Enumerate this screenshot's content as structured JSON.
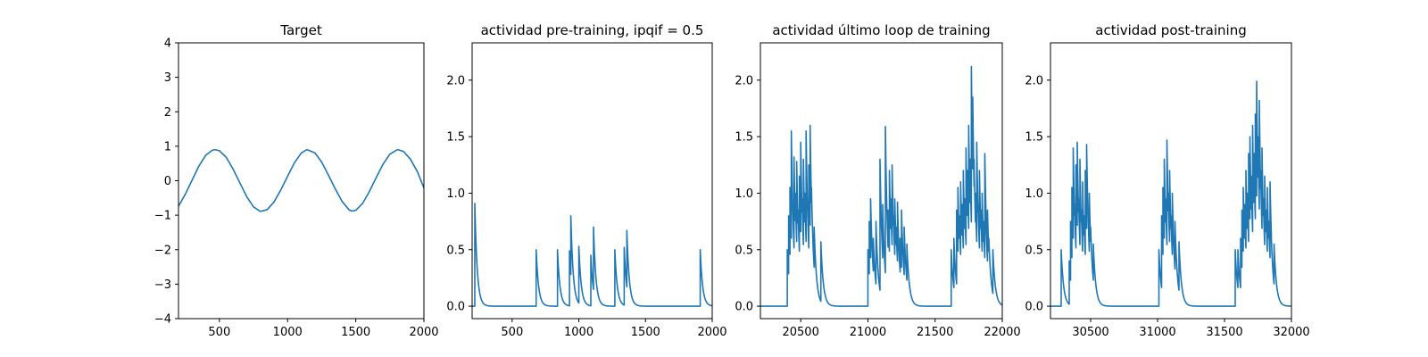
{
  "chart_data": [
    {
      "type": "line",
      "title": "Target",
      "xlabel": "",
      "ylabel": "",
      "xlim": [
        200,
        2000
      ],
      "ylim": [
        -4,
        4
      ],
      "xticks": [
        500,
        1000,
        1500,
        2000
      ],
      "yticks": [
        -4,
        -3,
        -2,
        -1,
        0,
        1,
        2,
        3,
        4
      ],
      "series": [
        {
          "color": "#1f77b4",
          "x": [
            200,
            250,
            300,
            350,
            400,
            450,
            470,
            500,
            550,
            600,
            650,
            700,
            750,
            800,
            850,
            900,
            950,
            1000,
            1050,
            1100,
            1140,
            1150,
            1200,
            1250,
            1300,
            1350,
            1400,
            1450,
            1470,
            1500,
            1550,
            1600,
            1650,
            1700,
            1750,
            1800,
            1810,
            1850,
            1900,
            1950,
            2000
          ],
          "y": [
            -0.74,
            -0.39,
            0.02,
            0.43,
            0.74,
            0.89,
            0.9,
            0.87,
            0.68,
            0.34,
            -0.06,
            -0.46,
            -0.76,
            -0.89,
            -0.84,
            -0.62,
            -0.27,
            0.13,
            0.52,
            0.8,
            0.9,
            0.89,
            0.81,
            0.54,
            0.16,
            -0.24,
            -0.6,
            -0.84,
            -0.88,
            -0.86,
            -0.66,
            -0.31,
            0.09,
            0.48,
            0.77,
            0.89,
            0.9,
            0.85,
            0.63,
            0.28,
            -0.21
          ]
        }
      ]
    },
    {
      "type": "line",
      "title": "actividad pre-training, ipqif = 0.5",
      "xlabel": "",
      "ylabel": "",
      "xlim": [
        200,
        2000
      ],
      "ylim": [
        -0.11,
        2.33
      ],
      "xticks": [
        500,
        1000,
        1500,
        2000
      ],
      "yticks": [
        0.0,
        0.5,
        1.0,
        1.5,
        2.0
      ],
      "ytick_labels": [
        "0.0",
        "0.5",
        "1.0",
        "1.5",
        "2.0"
      ],
      "series": [
        {
          "color": "#1f77b4",
          "kind": "spikes",
          "xstart": 200,
          "xend": 2000,
          "tau": 18,
          "spikes": [
            {
              "t": 220,
              "a": 0.91
            },
            {
              "t": 680,
              "a": 0.5
            },
            {
              "t": 840,
              "a": 0.5
            },
            {
              "t": 930,
              "a": 0.49
            },
            {
              "t": 940,
              "a": 0.8
            },
            {
              "t": 1000,
              "a": 0.53
            },
            {
              "t": 1090,
              "a": 0.45
            },
            {
              "t": 1110,
              "a": 0.7
            },
            {
              "t": 1270,
              "a": 0.5
            },
            {
              "t": 1340,
              "a": 0.52
            },
            {
              "t": 1360,
              "a": 0.67
            },
            {
              "t": 1910,
              "a": 0.5
            }
          ]
        }
      ]
    },
    {
      "type": "line",
      "title": "actividad último loop de training",
      "xlabel": "",
      "ylabel": "",
      "xlim": [
        20200,
        22000
      ],
      "ylim": [
        -0.11,
        2.33
      ],
      "xticks": [
        20500,
        21000,
        21500,
        22000
      ],
      "yticks": [
        0.0,
        0.5,
        1.0,
        1.5,
        2.0
      ],
      "ytick_labels": [
        "0.0",
        "0.5",
        "1.0",
        "1.5",
        "2.0"
      ],
      "series": [
        {
          "color": "#1f77b4",
          "kind": "spikes",
          "xstart": 20200,
          "xend": 22000,
          "tau": 18,
          "spikes": [
            {
              "t": 20400,
              "a": 0.5
            },
            {
              "t": 20410,
              "a": 0.8
            },
            {
              "t": 20420,
              "a": 1.05
            },
            {
              "t": 20430,
              "a": 1.55
            },
            {
              "t": 20440,
              "a": 0.9
            },
            {
              "t": 20450,
              "a": 1.32
            },
            {
              "t": 20460,
              "a": 1.0
            },
            {
              "t": 20470,
              "a": 1.28
            },
            {
              "t": 20480,
              "a": 0.85
            },
            {
              "t": 20490,
              "a": 1.15
            },
            {
              "t": 20500,
              "a": 1.45
            },
            {
              "t": 20510,
              "a": 0.95
            },
            {
              "t": 20520,
              "a": 1.3
            },
            {
              "t": 20530,
              "a": 1.0
            },
            {
              "t": 20540,
              "a": 1.55
            },
            {
              "t": 20550,
              "a": 0.9
            },
            {
              "t": 20560,
              "a": 1.25
            },
            {
              "t": 20570,
              "a": 1.6
            },
            {
              "t": 20580,
              "a": 1.05
            },
            {
              "t": 20600,
              "a": 0.7
            },
            {
              "t": 20650,
              "a": 0.57
            },
            {
              "t": 21000,
              "a": 0.5
            },
            {
              "t": 21010,
              "a": 0.75
            },
            {
              "t": 21020,
              "a": 0.95
            },
            {
              "t": 21040,
              "a": 0.6
            },
            {
              "t": 21060,
              "a": 0.75
            },
            {
              "t": 21090,
              "a": 1.3
            },
            {
              "t": 21110,
              "a": 0.9
            },
            {
              "t": 21130,
              "a": 1.59
            },
            {
              "t": 21150,
              "a": 0.85
            },
            {
              "t": 21160,
              "a": 1.2
            },
            {
              "t": 21170,
              "a": 0.95
            },
            {
              "t": 21180,
              "a": 1.25
            },
            {
              "t": 21190,
              "a": 0.8
            },
            {
              "t": 21200,
              "a": 0.95
            },
            {
              "t": 21210,
              "a": 0.7
            },
            {
              "t": 21220,
              "a": 0.92
            },
            {
              "t": 21240,
              "a": 0.6
            },
            {
              "t": 21250,
              "a": 0.85
            },
            {
              "t": 21270,
              "a": 0.7
            },
            {
              "t": 21290,
              "a": 0.55
            },
            {
              "t": 21620,
              "a": 0.5
            },
            {
              "t": 21640,
              "a": 0.6
            },
            {
              "t": 21660,
              "a": 0.85
            },
            {
              "t": 21670,
              "a": 1.05
            },
            {
              "t": 21680,
              "a": 0.8
            },
            {
              "t": 21690,
              "a": 1.1
            },
            {
              "t": 21700,
              "a": 0.9
            },
            {
              "t": 21710,
              "a": 1.2
            },
            {
              "t": 21720,
              "a": 0.95
            },
            {
              "t": 21730,
              "a": 1.4
            },
            {
              "t": 21740,
              "a": 1.2
            },
            {
              "t": 21750,
              "a": 1.6
            },
            {
              "t": 21760,
              "a": 1.3
            },
            {
              "t": 21770,
              "a": 2.12
            },
            {
              "t": 21780,
              "a": 1.85
            },
            {
              "t": 21790,
              "a": 1.3
            },
            {
              "t": 21800,
              "a": 1.0
            },
            {
              "t": 21810,
              "a": 1.45
            },
            {
              "t": 21820,
              "a": 0.9
            },
            {
              "t": 21830,
              "a": 1.2
            },
            {
              "t": 21840,
              "a": 0.85
            },
            {
              "t": 21850,
              "a": 1.0
            },
            {
              "t": 21860,
              "a": 0.75
            },
            {
              "t": 21870,
              "a": 1.35
            },
            {
              "t": 21880,
              "a": 0.7
            },
            {
              "t": 21890,
              "a": 0.85
            },
            {
              "t": 21900,
              "a": 0.6
            },
            {
              "t": 21930,
              "a": 0.5
            }
          ]
        }
      ]
    },
    {
      "type": "line",
      "title": "actividad post-training",
      "xlabel": "",
      "ylabel": "",
      "xlim": [
        30200,
        32000
      ],
      "ylim": [
        -0.11,
        2.33
      ],
      "xticks": [
        30500,
        31000,
        31500,
        32000
      ],
      "yticks": [
        0.0,
        0.5,
        1.0,
        1.5,
        2.0
      ],
      "ytick_labels": [
        "0.0",
        "0.5",
        "1.0",
        "1.5",
        "2.0"
      ],
      "series": [
        {
          "color": "#1f77b4",
          "kind": "spikes",
          "xstart": 30200,
          "xend": 32000,
          "tau": 18,
          "spikes": [
            {
              "t": 30280,
              "a": 0.5
            },
            {
              "t": 30340,
              "a": 0.4
            },
            {
              "t": 30350,
              "a": 0.75
            },
            {
              "t": 30360,
              "a": 1.05
            },
            {
              "t": 30370,
              "a": 1.4
            },
            {
              "t": 30380,
              "a": 0.9
            },
            {
              "t": 30390,
              "a": 1.25
            },
            {
              "t": 30400,
              "a": 1.45
            },
            {
              "t": 30410,
              "a": 0.95
            },
            {
              "t": 30420,
              "a": 1.3
            },
            {
              "t": 30430,
              "a": 0.85
            },
            {
              "t": 30440,
              "a": 1.1
            },
            {
              "t": 30450,
              "a": 0.8
            },
            {
              "t": 30460,
              "a": 1.2
            },
            {
              "t": 30470,
              "a": 1.43
            },
            {
              "t": 30480,
              "a": 0.85
            },
            {
              "t": 30490,
              "a": 1.0
            },
            {
              "t": 30500,
              "a": 0.7
            },
            {
              "t": 30520,
              "a": 0.55
            },
            {
              "t": 31010,
              "a": 0.5
            },
            {
              "t": 31030,
              "a": 0.8
            },
            {
              "t": 31040,
              "a": 1.05
            },
            {
              "t": 31050,
              "a": 1.3
            },
            {
              "t": 31060,
              "a": 0.95
            },
            {
              "t": 31070,
              "a": 1.47
            },
            {
              "t": 31080,
              "a": 1.0
            },
            {
              "t": 31090,
              "a": 1.2
            },
            {
              "t": 31100,
              "a": 0.8
            },
            {
              "t": 31110,
              "a": 1.0
            },
            {
              "t": 31130,
              "a": 0.75
            },
            {
              "t": 31160,
              "a": 0.57
            },
            {
              "t": 31580,
              "a": 0.5
            },
            {
              "t": 31600,
              "a": 0.5
            },
            {
              "t": 31620,
              "a": 0.6
            },
            {
              "t": 31630,
              "a": 0.85
            },
            {
              "t": 31640,
              "a": 1.05
            },
            {
              "t": 31650,
              "a": 0.9
            },
            {
              "t": 31660,
              "a": 1.2
            },
            {
              "t": 31670,
              "a": 1.0
            },
            {
              "t": 31680,
              "a": 1.35
            },
            {
              "t": 31690,
              "a": 1.5
            },
            {
              "t": 31700,
              "a": 1.15
            },
            {
              "t": 31710,
              "a": 1.6
            },
            {
              "t": 31720,
              "a": 1.35
            },
            {
              "t": 31730,
              "a": 1.7
            },
            {
              "t": 31740,
              "a": 1.99
            },
            {
              "t": 31750,
              "a": 1.5
            },
            {
              "t": 31760,
              "a": 1.82
            },
            {
              "t": 31770,
              "a": 1.2
            },
            {
              "t": 31780,
              "a": 1.4
            },
            {
              "t": 31790,
              "a": 0.95
            },
            {
              "t": 31800,
              "a": 1.15
            },
            {
              "t": 31810,
              "a": 0.85
            },
            {
              "t": 31820,
              "a": 1.05
            },
            {
              "t": 31830,
              "a": 0.75
            },
            {
              "t": 31840,
              "a": 1.1
            },
            {
              "t": 31850,
              "a": 0.6
            },
            {
              "t": 31870,
              "a": 0.55
            }
          ]
        }
      ]
    }
  ]
}
